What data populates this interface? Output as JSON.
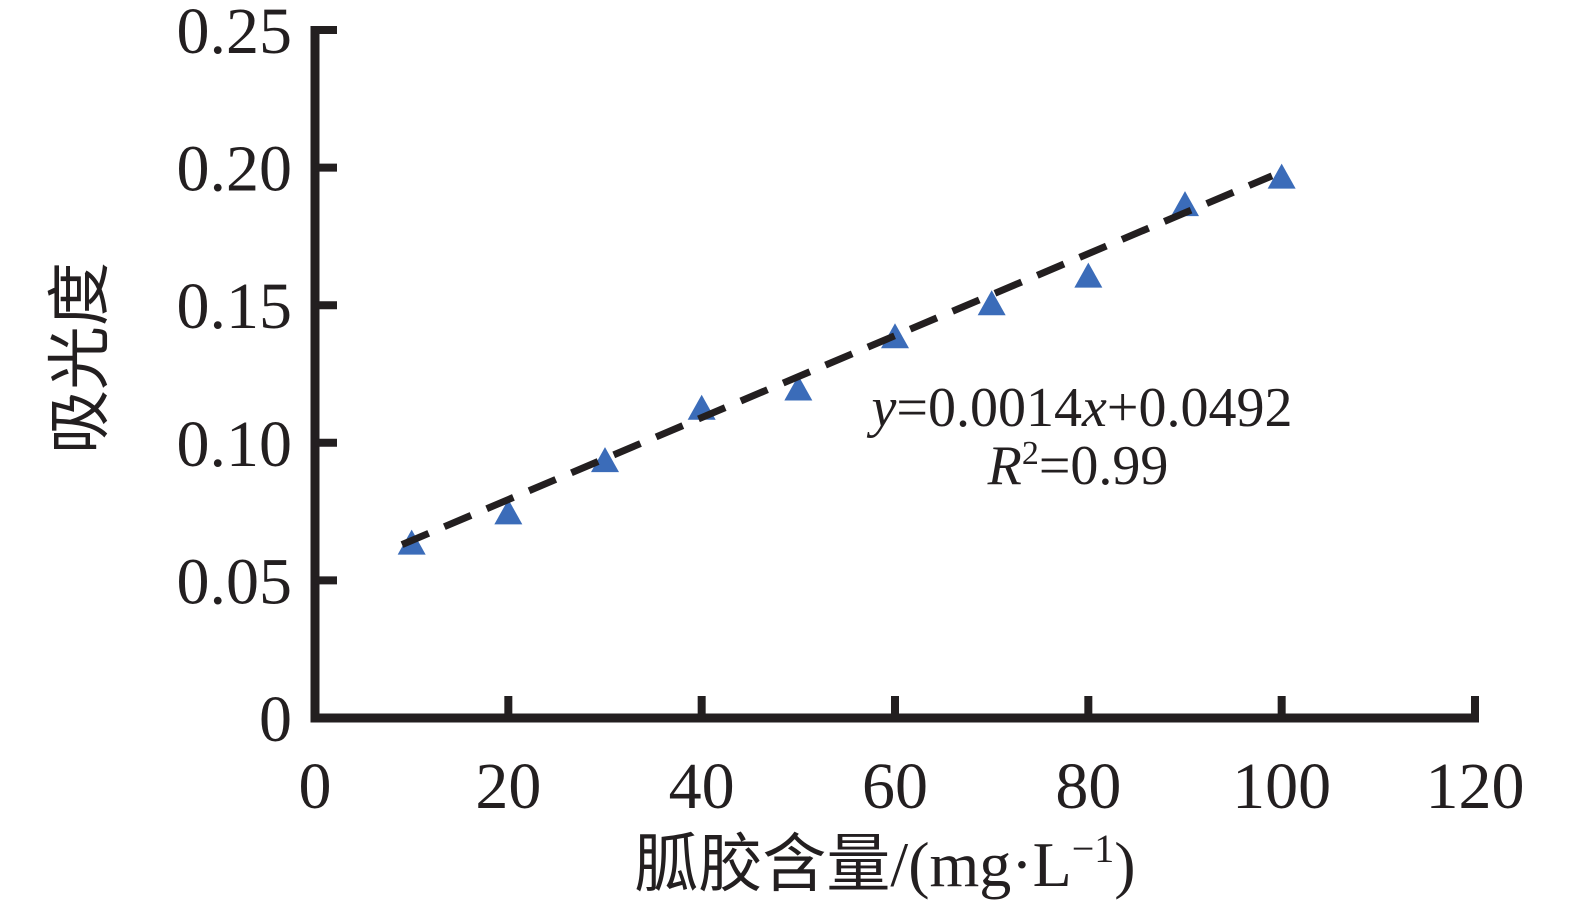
{
  "colors": {
    "ink": "#231f20",
    "marker_blue": "#3b6cb9",
    "trendline_black": "#231f20",
    "background": "#ffffff"
  },
  "chart_data": {
    "type": "scatter",
    "x": [
      10,
      20,
      30,
      40,
      50,
      60,
      70,
      80,
      90,
      100
    ],
    "y": [
      0.063,
      0.074,
      0.093,
      0.112,
      0.119,
      0.138,
      0.15,
      0.16,
      0.186,
      0.196
    ],
    "title": "",
    "xlabel": "胍胶含量/(mg·L⁻¹)",
    "ylabel": "吸光度",
    "xlim": [
      0,
      120
    ],
    "ylim": [
      0,
      0.25
    ],
    "xticks": [
      0,
      20,
      40,
      60,
      80,
      100,
      120
    ],
    "xtick_labels": [
      "0",
      "20",
      "40",
      "60",
      "80",
      "100",
      "120"
    ],
    "yticks": [
      0,
      0.05,
      0.1,
      0.15,
      0.2,
      0.25
    ],
    "ytick_labels": [
      "0",
      "0.05",
      "0.10",
      "0.15",
      "0.20",
      "0.25"
    ],
    "grid": false,
    "legend": "none",
    "marker": "triangle-up",
    "trendline": {
      "style": "dashed",
      "equation": "y=0.0014x+0.0492",
      "r_squared": "R²=0.99",
      "x1": 9,
      "y1": 0.063,
      "x2": 99,
      "y2": 0.197
    }
  },
  "labels": {
    "xlabel_main": "胍胶含量/(mg·L",
    "xlabel_sup": "−1",
    "xlabel_close": ")"
  },
  "annotation": {
    "eq_y": "y",
    "eq_part1": "=0.0014",
    "eq_x": "x",
    "eq_part2": "+0.0492",
    "r_label": "R",
    "r_sup": "2",
    "r_value": "=0.99"
  }
}
